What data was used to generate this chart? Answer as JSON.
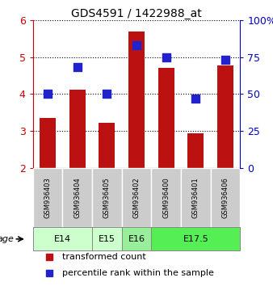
{
  "title": "GDS4591 / 1422988_at",
  "samples": [
    "GSM936403",
    "GSM936404",
    "GSM936405",
    "GSM936402",
    "GSM936400",
    "GSM936401",
    "GSM936406"
  ],
  "transformed_count": [
    3.35,
    4.12,
    3.22,
    5.68,
    4.7,
    2.95,
    4.77
  ],
  "percentile_rank": [
    50,
    68,
    50,
    83,
    75,
    47,
    73
  ],
  "bar_color": "#bb1111",
  "dot_color": "#2222cc",
  "ylim_left": [
    2,
    6
  ],
  "ylim_right": [
    0,
    100
  ],
  "yticks_left": [
    2,
    3,
    4,
    5,
    6
  ],
  "yticks_right": [
    0,
    25,
    50,
    75,
    100
  ],
  "ytick_labels_right": [
    "0",
    "25",
    "50",
    "75",
    "100%"
  ],
  "age_groups": [
    {
      "label": "E14",
      "start": 0,
      "end": 1,
      "color": "#ccffcc"
    },
    {
      "label": "E15",
      "start": 2,
      "end": 2,
      "color": "#ccffcc"
    },
    {
      "label": "E16",
      "start": 3,
      "end": 3,
      "color": "#99ee99"
    },
    {
      "label": "E17.5",
      "start": 4,
      "end": 6,
      "color": "#55ee55"
    }
  ],
  "legend_tc_label": "transformed count",
  "legend_pr_label": "percentile rank within the sample",
  "xlabel_age": "age",
  "bar_bottom": 2,
  "bar_width": 0.55,
  "dot_size": 45,
  "tick_color_left": "#cc0000",
  "tick_color_right": "#0000cc",
  "bg_sample_color": "#cccccc",
  "title_fontsize": 10
}
